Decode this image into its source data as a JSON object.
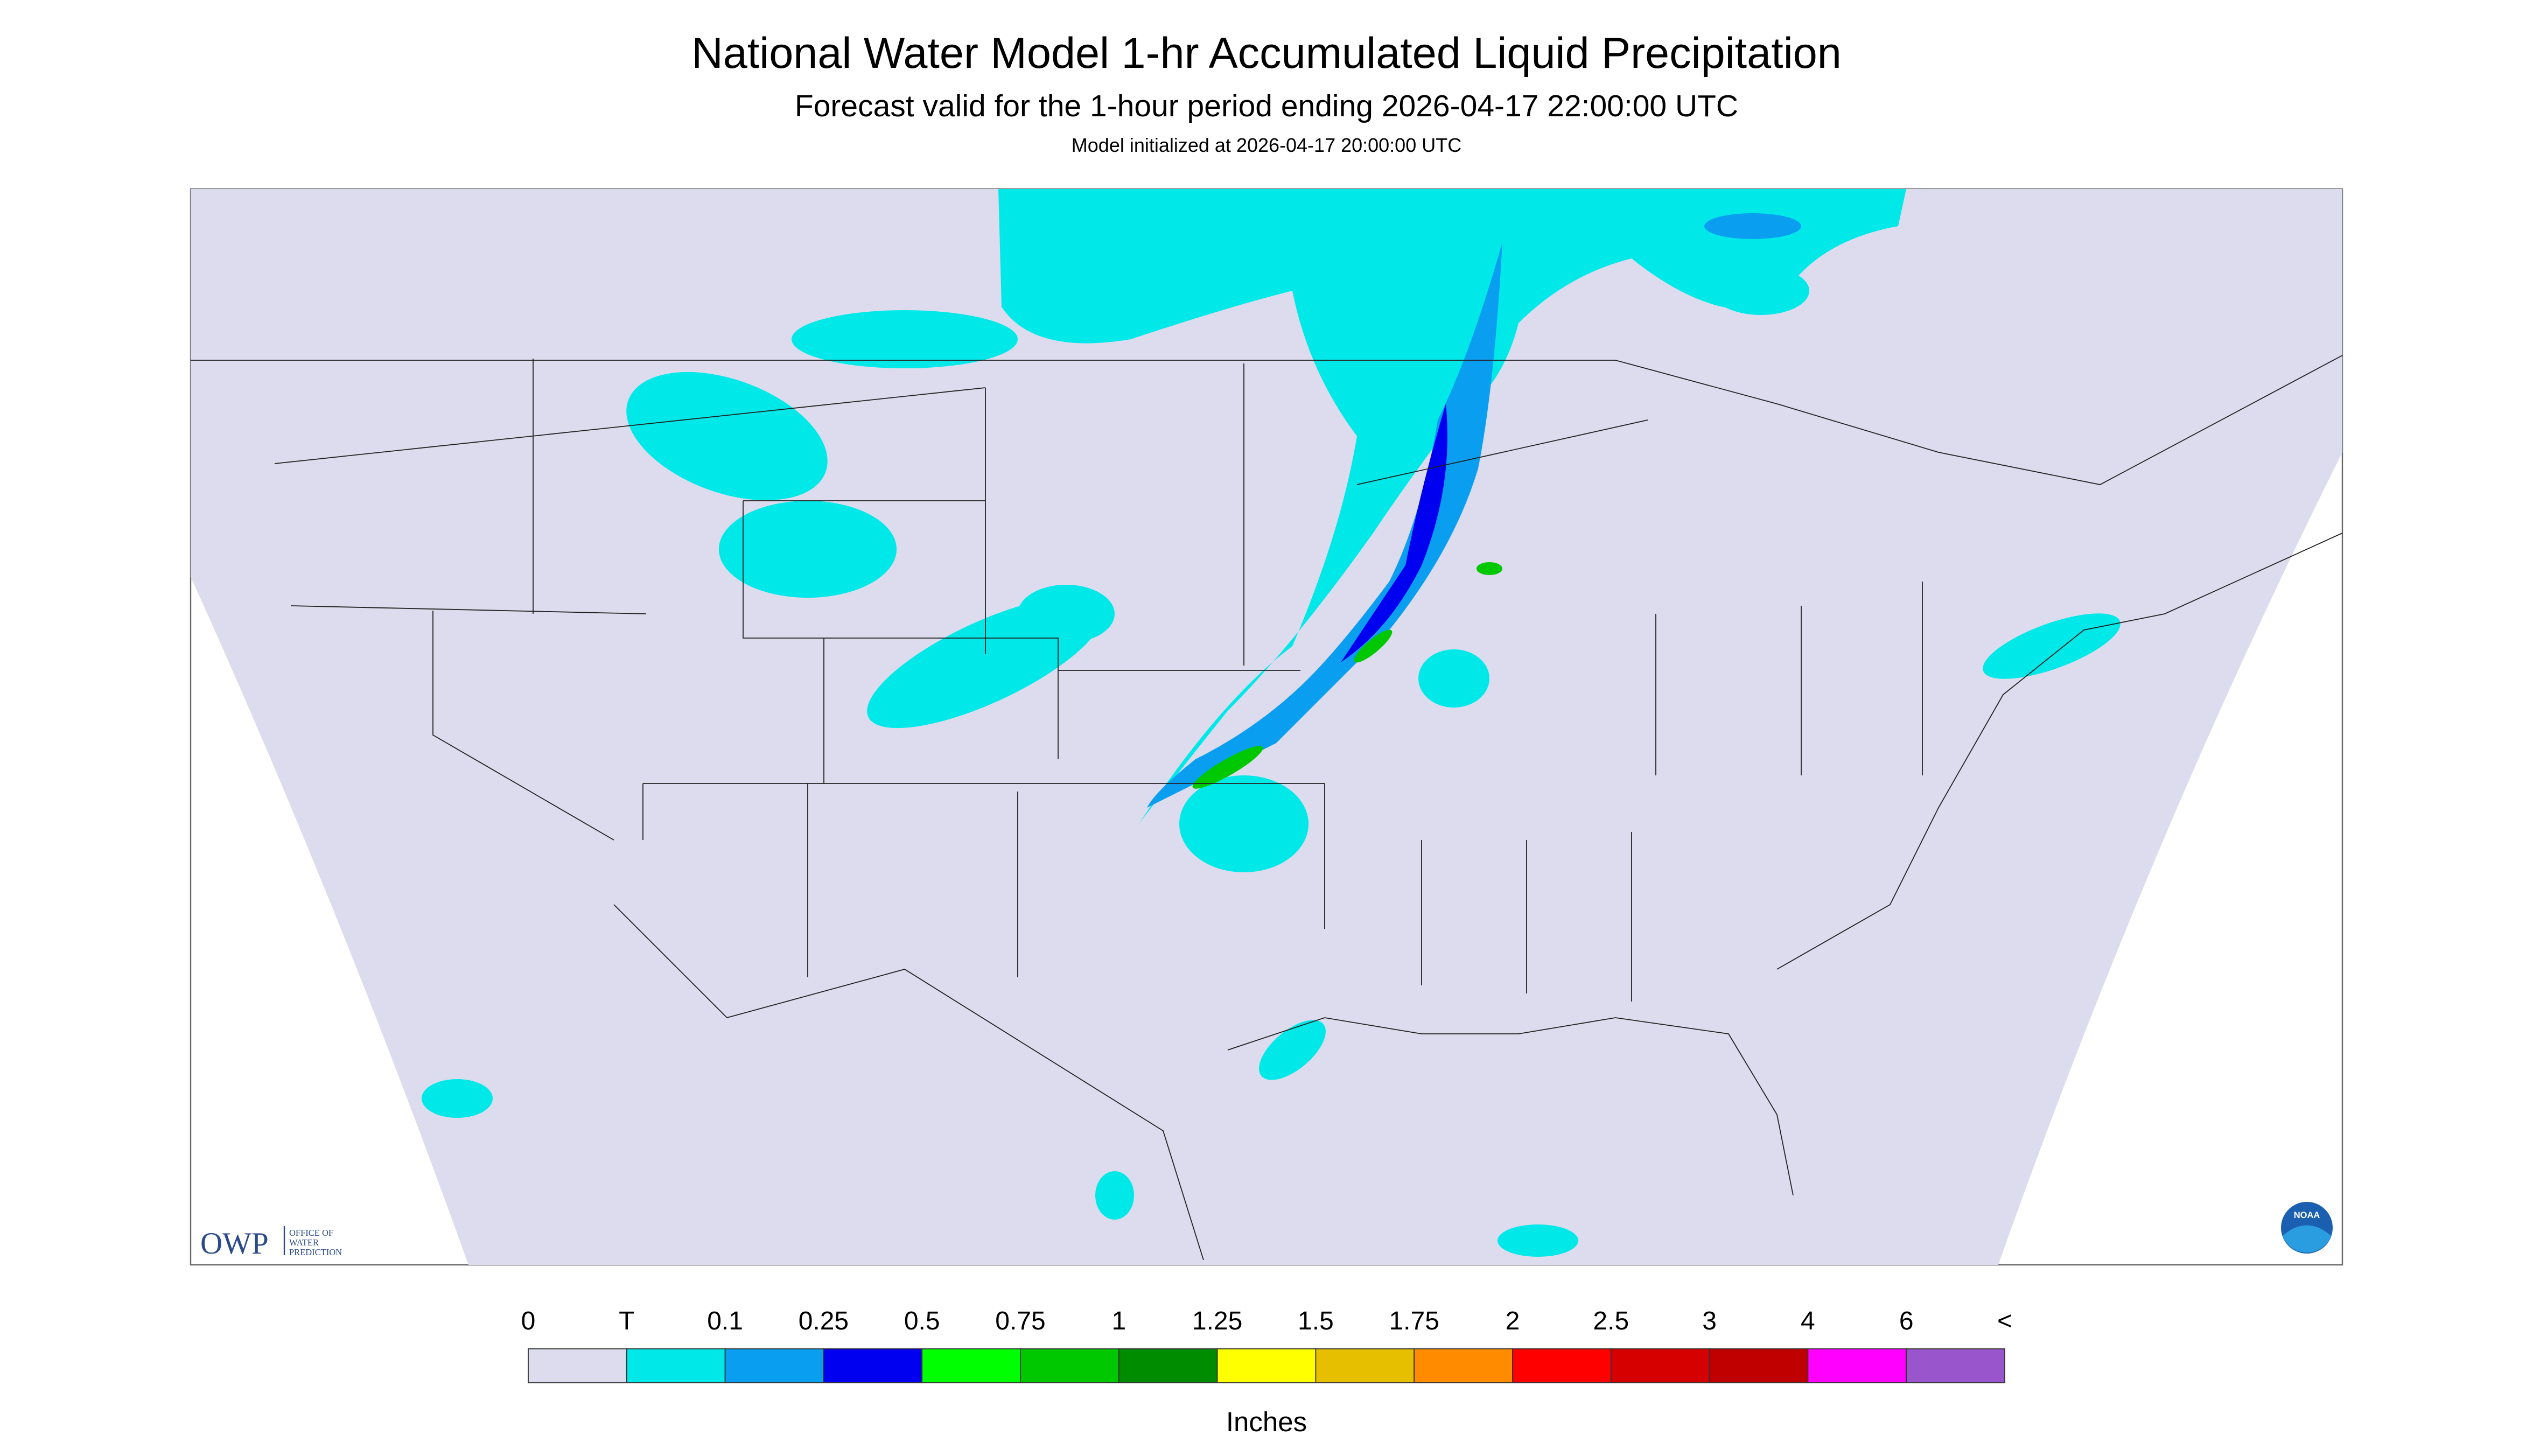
{
  "header": {
    "title": "National Water Model 1-hr Accumulated Liquid Precipitation",
    "subtitle": "Forecast valid for the 1-hour period ending 2026-04-17 22:00:00 UTC",
    "initialized": "Model initialized at 2026-04-17 20:00:00 UTC"
  },
  "legend": {
    "labels": [
      "0",
      "T",
      "0.1",
      "0.25",
      "0.5",
      "0.75",
      "1",
      "1.25",
      "1.5",
      "1.75",
      "2",
      "2.5",
      "3",
      "4",
      "6",
      "<"
    ],
    "colors": [
      "#dcdcee",
      "#00e8e8",
      "#0a9ef0",
      "#0000f0",
      "#00ff00",
      "#00c800",
      "#008c00",
      "#ffff00",
      "#e6c000",
      "#ff8c00",
      "#ff0000",
      "#d70000",
      "#c00000",
      "#ff00ff",
      "#9955cc"
    ],
    "unit": "Inches"
  },
  "logos": {
    "owp": "OWP",
    "owp_line1": "OFFICE OF",
    "owp_line2": "WATER",
    "owp_line3": "PREDICTION",
    "noaa": "NOAA"
  }
}
